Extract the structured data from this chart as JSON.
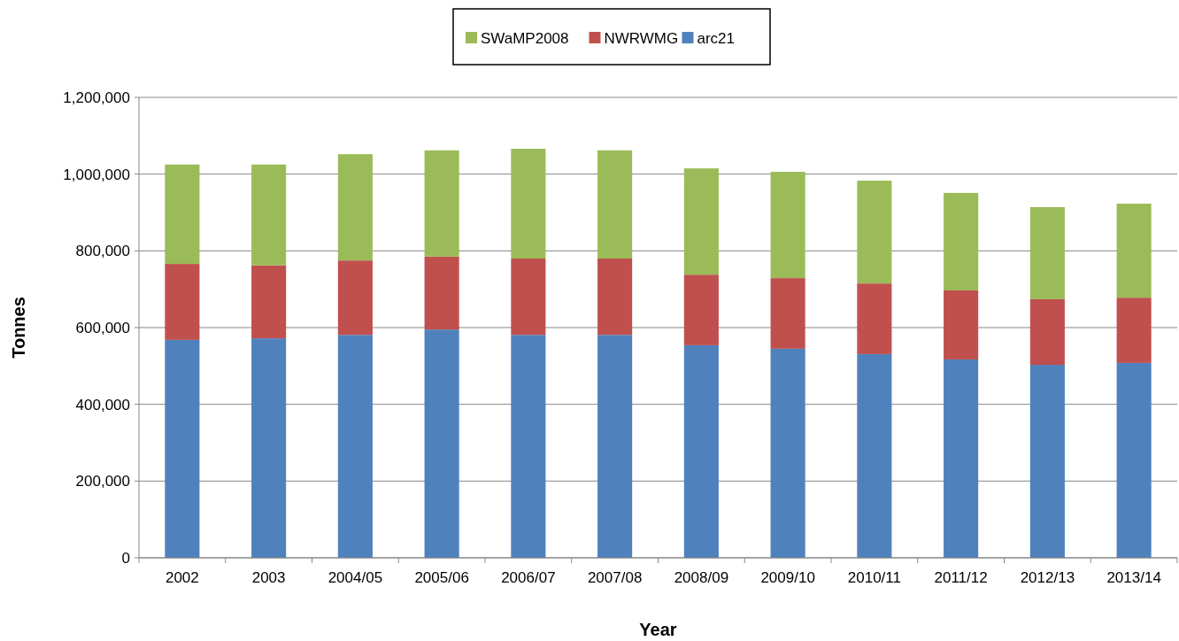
{
  "chart_data": {
    "type": "bar",
    "stacked": true,
    "xlabel": "Year",
    "ylabel": "Tonnes",
    "categories": [
      "2002",
      "2003",
      "2004/05",
      "2005/06",
      "2006/07",
      "2007/08",
      "2008/09",
      "2009/10",
      "2010/11",
      "2011/12",
      "2012/13",
      "2013/14"
    ],
    "series": [
      {
        "name": "arc21",
        "color": "#4f81bd",
        "values": [
          568000,
          572000,
          581000,
          595000,
          581000,
          581000,
          554000,
          545000,
          531000,
          517000,
          503000,
          508000
        ]
      },
      {
        "name": "NWRWMG",
        "color": "#c0504d",
        "values": [
          198000,
          190000,
          194000,
          190000,
          199000,
          199000,
          184000,
          184000,
          184000,
          180000,
          171000,
          170000
        ]
      },
      {
        "name": "SWaMP2008",
        "color": "#9bbb59",
        "values": [
          259000,
          263000,
          277000,
          277000,
          286000,
          282000,
          277000,
          277000,
          268000,
          254000,
          240000,
          245000
        ]
      }
    ],
    "ylim": [
      0,
      1200000
    ],
    "yticks": [
      {
        "value": 0,
        "label": "0"
      },
      {
        "value": 200000,
        "label": "200,000"
      },
      {
        "value": 400000,
        "label": "400,000"
      },
      {
        "value": 600000,
        "label": "600,000"
      },
      {
        "value": 800000,
        "label": "800,000"
      },
      {
        "value": 1000000,
        "label": "1,000,000"
      },
      {
        "value": 1200000,
        "label": "1,200,000"
      }
    ],
    "grid": "y",
    "legend": "top"
  }
}
